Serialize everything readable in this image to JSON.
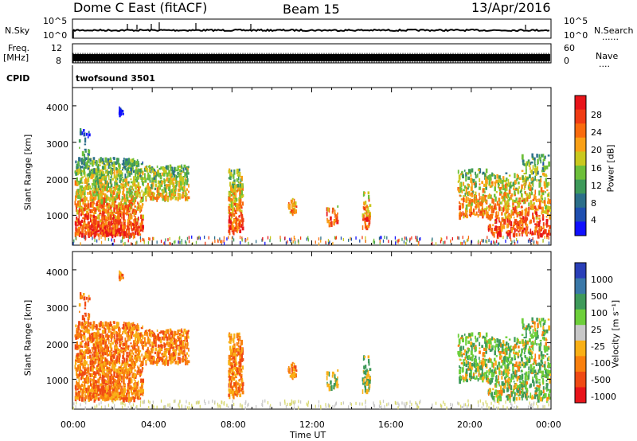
{
  "header": {
    "radar": "Dome C East (fitACF)",
    "beam": "Beam 15",
    "date": "13/Apr/2016"
  },
  "status_panels": {
    "nsky_label": "N.Sky",
    "nsearch_label": "N.Search",
    "nsearch_dots": "......",
    "nsky_ticks": [
      "10^5",
      "10^0"
    ],
    "nsearch_ticks": [
      "10^5",
      "10^0"
    ],
    "freq_label_1": "Freq.",
    "freq_label_2": "[MHz]",
    "freq_ticks": [
      "12",
      "8"
    ],
    "nave_label": "Nave",
    "nave_dots": "....",
    "nave_ticks": [
      "60",
      "0"
    ],
    "cpid_label": "CPID",
    "cpid_value": "twofsound 3501"
  },
  "chart_data": [
    {
      "type": "heatmap",
      "title": "",
      "xlabel": "Time UT",
      "ylabel": "Slant Range [km]",
      "xlim": [
        0,
        24
      ],
      "ylim": [
        180,
        4500
      ],
      "y_ticks": [
        1000,
        2000,
        3000,
        4000
      ],
      "x_ticks": [
        "00:00",
        "04:00",
        "08:00",
        "12:00",
        "16:00",
        "20:00",
        "00:00"
      ],
      "colorbar": {
        "label": "Power [dB]",
        "ticks": [
          "28",
          "24",
          "20",
          "16",
          "12",
          "8",
          "4"
        ],
        "colors": [
          "#e8141a",
          "#f03c14",
          "#f96b0e",
          "#f9a016",
          "#c9c81e",
          "#6dbf3a",
          "#3e9a5a",
          "#2c6f8a",
          "#1f4fb0",
          "#1010ff"
        ]
      }
    },
    {
      "type": "heatmap",
      "title": "",
      "xlabel": "Time UT",
      "ylabel": "Slant Range [km]",
      "xlim": [
        0,
        24
      ],
      "ylim": [
        180,
        4500
      ],
      "y_ticks": [
        1000,
        2000,
        3000,
        4000
      ],
      "x_ticks": [
        "00:00",
        "04:00",
        "08:00",
        "12:00",
        "16:00",
        "20:00",
        "00:00"
      ],
      "colorbar": {
        "label": "Velocity [m s⁻¹]",
        "ticks": [
          "1000",
          "500",
          "100",
          "25",
          "-25",
          "-100",
          "-500",
          "-1000"
        ],
        "colors": [
          "#2a3fb8",
          "#3a78a8",
          "#3e9a5a",
          "#6dcf3a",
          "#c8c8c8",
          "#f9b016",
          "#f9800e",
          "#f04a14",
          "#e8141a"
        ]
      }
    }
  ]
}
